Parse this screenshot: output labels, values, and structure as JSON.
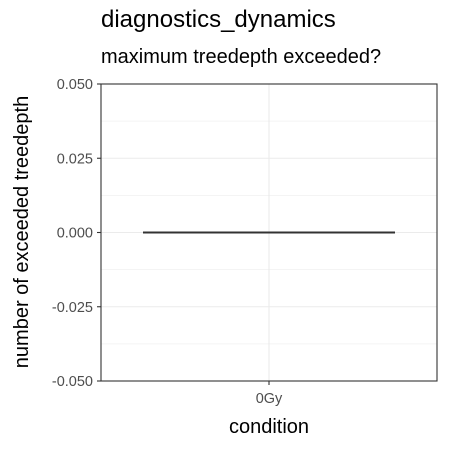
{
  "chart_data": {
    "type": "boxplot",
    "title": "diagnostics_dynamics",
    "subtitle": "maximum treedepth exceeded?",
    "xlabel": "condition",
    "ylabel": "number of exceeded treedepth",
    "categories": [
      "0Gy"
    ],
    "series": [
      {
        "values": [
          {
            "min": 0,
            "q1": 0,
            "median": 0,
            "q3": 0,
            "max": 0
          }
        ]
      }
    ],
    "ylim": [
      -0.05,
      0.05
    ],
    "yticks": [
      -0.05,
      -0.025,
      0,
      0.025,
      0.05
    ],
    "ytick_labels": [
      "-0.050",
      "-0.025",
      "0.000",
      "0.025",
      "0.050"
    ],
    "grid": true,
    "legend": "none"
  }
}
